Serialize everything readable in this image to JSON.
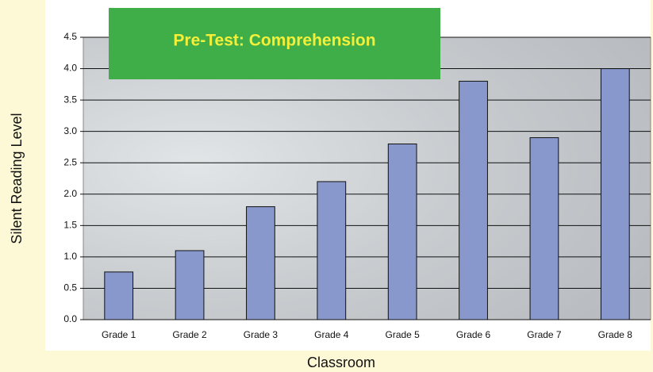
{
  "chart_data": {
    "type": "bar",
    "title": "Pre-Test: Comprehension",
    "xlabel": "Classroom",
    "ylabel": "Silent Reading Level",
    "categories": [
      "Grade 1",
      "Grade 2",
      "Grade 3",
      "Grade 4",
      "Grade 5",
      "Grade 6",
      "Grade 7",
      "Grade 8"
    ],
    "values": [
      0.76,
      1.1,
      1.8,
      2.2,
      2.8,
      3.8,
      2.9,
      4.0
    ],
    "color": "#8898cc",
    "ylim": [
      0,
      4.5
    ],
    "yticks": [
      {
        "value": 0,
        "label": "0.0"
      },
      0.5,
      {
        "value": 1,
        "label": "1.0"
      },
      1.5,
      {
        "value": 2,
        "label": "2.0"
      },
      2.5,
      {
        "value": 3,
        "label": "3.0"
      },
      3.5,
      {
        "value": 4,
        "label": "4.0"
      },
      4.5
    ],
    "grid": true
  }
}
